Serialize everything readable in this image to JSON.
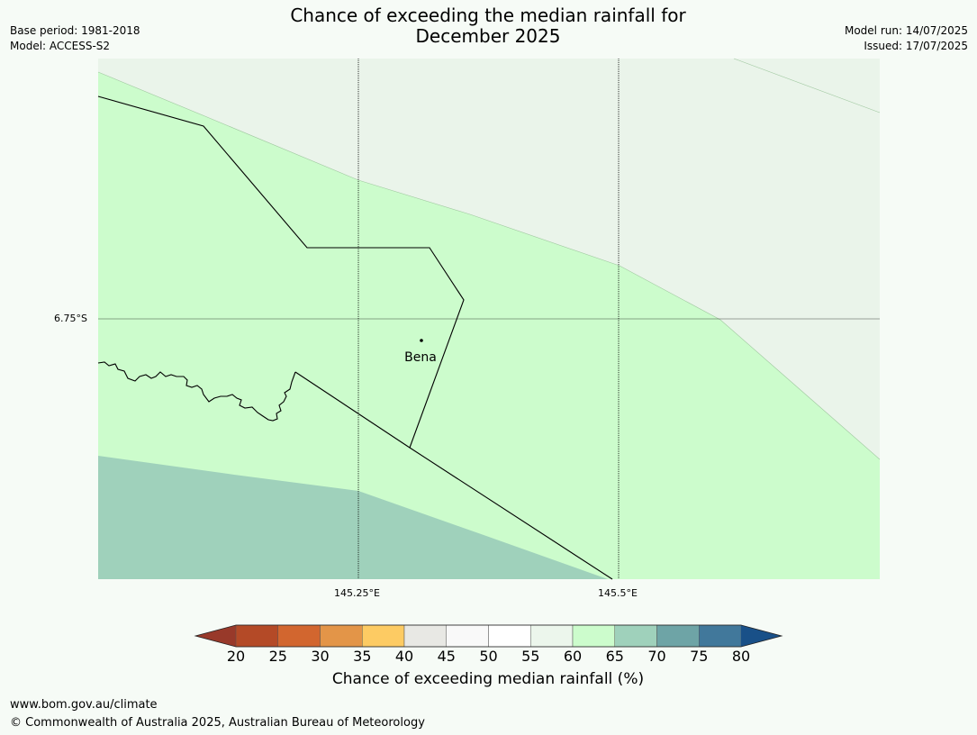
{
  "title": {
    "line1": "Chance of exceeding the median rainfall for",
    "line2": "December 2025"
  },
  "meta": {
    "base_period": "Base period: 1981-2018",
    "model": "Model: ACCESS-S2",
    "model_run": "Model run: 14/07/2025",
    "issued": "Issued: 17/07/2025"
  },
  "map": {
    "lat_label": "6.75°S",
    "lon_labels": [
      "145.25°E",
      "145.5°E"
    ],
    "place": "Bena",
    "zones": [
      {
        "category": "55-60",
        "color": "#eaf4ea"
      },
      {
        "category": "60-65",
        "color": "#ccfccc"
      },
      {
        "category": "65-70",
        "color": "#9fd1bb"
      }
    ]
  },
  "colorbar": {
    "ticks": [
      "20",
      "25",
      "30",
      "35",
      "40",
      "45",
      "50",
      "55",
      "60",
      "65",
      "70",
      "75",
      "80"
    ],
    "colors": [
      "#b44a27",
      "#d2662f",
      "#e39548",
      "#fdcb63",
      "#e8e8e4",
      "#f9f9f9",
      "#ffffff",
      "#ecf6ec",
      "#ccfccc",
      "#9fd1bb",
      "#6ea4a6",
      "#41789b"
    ],
    "under_color": "#98392a",
    "over_color": "#195088",
    "label": "Chance of exceeding median rainfall (%)"
  },
  "footer": {
    "website": "www.bom.gov.au/climate",
    "copyright": "© Commonwealth of Australia 2025, Australian Bureau of Meteorology"
  }
}
